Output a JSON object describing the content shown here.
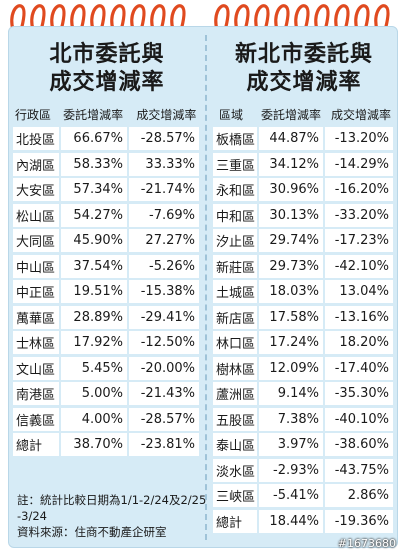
{
  "left": {
    "title_line1": "北市委託與",
    "title_line2": "成交增減率",
    "headers": [
      "行政區",
      "委託增減率",
      "成交增減率"
    ],
    "rows": [
      [
        "北投區",
        "66.67%",
        "-28.57%"
      ],
      [
        "內湖區",
        "58.33%",
        "33.33%"
      ],
      [
        "大安區",
        "57.34%",
        "-21.74%"
      ],
      [
        "松山區",
        "54.27%",
        "-7.69%"
      ],
      [
        "大同區",
        "45.90%",
        "27.27%"
      ],
      [
        "中山區",
        "37.54%",
        "-5.26%"
      ],
      [
        "中正區",
        "19.51%",
        "-15.38%"
      ],
      [
        "萬華區",
        "28.89%",
        "-29.41%"
      ],
      [
        "士林區",
        "17.92%",
        "-12.50%"
      ],
      [
        "文山區",
        "5.45%",
        "-20.00%"
      ],
      [
        "南港區",
        "5.00%",
        "-21.43%"
      ],
      [
        "信義區",
        "4.00%",
        "-28.57%"
      ],
      [
        "總計",
        "38.70%",
        "-23.81%"
      ]
    ]
  },
  "right": {
    "title_line1": "新北市委託與",
    "title_line2": "成交增減率",
    "headers": [
      "區域",
      "委託增減率",
      "成交增減率"
    ],
    "rows": [
      [
        "板橋區",
        "44.87%",
        "-13.20%"
      ],
      [
        "三重區",
        "34.12%",
        "-14.29%"
      ],
      [
        "永和區",
        "30.96%",
        "-16.20%"
      ],
      [
        "中和區",
        "30.13%",
        "-33.20%"
      ],
      [
        "汐止區",
        "29.74%",
        "-17.23%"
      ],
      [
        "新莊區",
        "29.73%",
        "-42.10%"
      ],
      [
        "土城區",
        "18.03%",
        "13.04%"
      ],
      [
        "新店區",
        "17.58%",
        "-13.16%"
      ],
      [
        "林口區",
        "17.24%",
        "18.20%"
      ],
      [
        "樹林區",
        "12.09%",
        "-17.40%"
      ],
      [
        "蘆洲區",
        "9.14%",
        "-35.30%"
      ],
      [
        "五股區",
        "7.38%",
        "-40.10%"
      ],
      [
        "泰山區",
        "3.97%",
        "-38.60%"
      ],
      [
        "淡水區",
        "-2.93%",
        "-43.75%"
      ],
      [
        "三峽區",
        "-5.41%",
        "2.86%"
      ],
      [
        "總計",
        "18.44%",
        "-19.36%"
      ]
    ]
  },
  "notes": {
    "line1": "註：統計比較日期為1/1-2/24及2/25",
    "line2": "-3/24",
    "line3": "資料來源：住商不動產企研室"
  },
  "stamp": "#1673680",
  "colors": {
    "card_bg": "#d6ebf6",
    "cell_bg": "#ffffff",
    "ring": "#e04a1f"
  }
}
